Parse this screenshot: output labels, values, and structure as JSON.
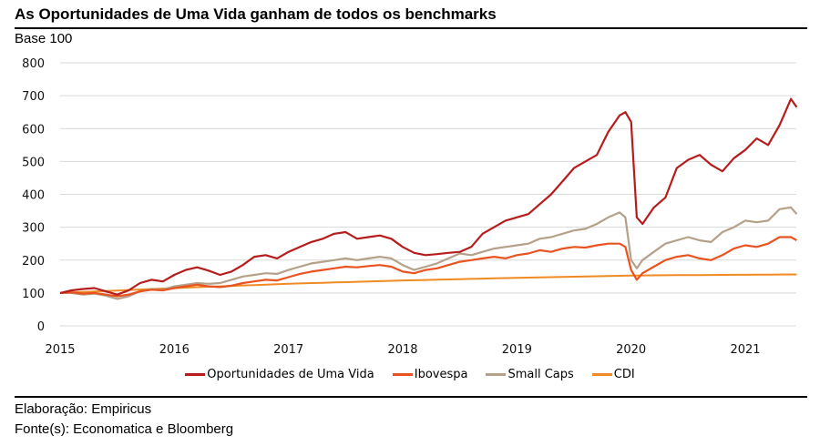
{
  "header": {
    "title": "As Oportunidades de Uma Vida ganham de todos os benchmarks",
    "subtitle": "Base 100"
  },
  "footer": {
    "line1": "Elaboração: Empiricus",
    "line2": "Fonte(s): Economatica e Bloomberg"
  },
  "chart_data": {
    "type": "line",
    "title": "As Oportunidades de Uma Vida ganham de todos os benchmarks",
    "ylabel": "Base 100",
    "xlabel": "",
    "ylim": [
      0,
      800
    ],
    "xlim": [
      2015.0,
      2021.45
    ],
    "grid": true,
    "legend_position": "bottom",
    "y_ticks": [
      "0",
      "100",
      "200",
      "300",
      "400",
      "500",
      "600",
      "700",
      "800"
    ],
    "x_ticks": [
      "2015",
      "2016",
      "2017",
      "2018",
      "2019",
      "2020",
      "2021"
    ],
    "x": [
      2015.0,
      2015.1,
      2015.2,
      2015.3,
      2015.4,
      2015.5,
      2015.6,
      2015.7,
      2015.8,
      2015.9,
      2016.0,
      2016.1,
      2016.2,
      2016.3,
      2016.4,
      2016.5,
      2016.6,
      2016.7,
      2016.8,
      2016.9,
      2017.0,
      2017.1,
      2017.2,
      2017.3,
      2017.4,
      2017.5,
      2017.6,
      2017.7,
      2017.8,
      2017.9,
      2018.0,
      2018.1,
      2018.2,
      2018.3,
      2018.4,
      2018.5,
      2018.6,
      2018.7,
      2018.8,
      2018.9,
      2019.0,
      2019.1,
      2019.2,
      2019.3,
      2019.4,
      2019.5,
      2019.6,
      2019.7,
      2019.8,
      2019.9,
      2019.95,
      2020.0,
      2020.05,
      2020.1,
      2020.2,
      2020.3,
      2020.4,
      2020.5,
      2020.6,
      2020.7,
      2020.8,
      2020.9,
      2021.0,
      2021.1,
      2021.2,
      2021.3,
      2021.4,
      2021.45
    ],
    "series": [
      {
        "name": "Oportunidades de Uma Vida",
        "color": "#B71C1C",
        "values": [
          100,
          108,
          112,
          115,
          105,
          95,
          108,
          130,
          140,
          135,
          155,
          170,
          178,
          168,
          155,
          165,
          185,
          210,
          215,
          205,
          225,
          240,
          255,
          265,
          280,
          285,
          265,
          270,
          275,
          265,
          240,
          222,
          215,
          218,
          222,
          225,
          240,
          280,
          300,
          320,
          330,
          340,
          370,
          400,
          440,
          480,
          500,
          520,
          590,
          640,
          650,
          620,
          330,
          310,
          360,
          390,
          480,
          505,
          520,
          490,
          470,
          510,
          535,
          570,
          550,
          610,
          690,
          665
        ]
      },
      {
        "name": "Ibovespa",
        "color": "#E8531F",
        "values": [
          100,
          102,
          98,
          100,
          95,
          90,
          95,
          105,
          110,
          108,
          115,
          120,
          125,
          120,
          118,
          122,
          130,
          135,
          140,
          138,
          148,
          158,
          165,
          170,
          175,
          180,
          178,
          182,
          185,
          180,
          165,
          160,
          170,
          175,
          185,
          195,
          200,
          205,
          210,
          205,
          215,
          220,
          230,
          225,
          235,
          240,
          238,
          245,
          250,
          250,
          240,
          170,
          140,
          160,
          180,
          200,
          210,
          215,
          205,
          200,
          215,
          235,
          245,
          240,
          250,
          270,
          270,
          260
        ]
      },
      {
        "name": "Small Caps",
        "color": "#B5A089",
        "values": [
          100,
          100,
          95,
          98,
          92,
          82,
          90,
          105,
          112,
          110,
          120,
          125,
          130,
          128,
          130,
          140,
          150,
          155,
          160,
          158,
          170,
          180,
          190,
          195,
          200,
          205,
          200,
          205,
          210,
          205,
          185,
          170,
          180,
          190,
          205,
          220,
          215,
          225,
          235,
          240,
          245,
          250,
          265,
          270,
          280,
          290,
          295,
          310,
          330,
          345,
          330,
          200,
          175,
          200,
          225,
          250,
          260,
          270,
          260,
          255,
          285,
          300,
          320,
          315,
          320,
          355,
          360,
          340
        ]
      },
      {
        "name": "CDI",
        "color": "#F08A24",
        "values": [
          100,
          101.5,
          103,
          104.5,
          106,
          107.5,
          109,
          110.5,
          112,
          113.5,
          115,
          116.3,
          117.6,
          118.9,
          120.2,
          121.5,
          122.8,
          124.1,
          125.4,
          126.7,
          128,
          129,
          130,
          131,
          132,
          133,
          134,
          135,
          136,
          137,
          138,
          138.8,
          139.6,
          140.4,
          141.2,
          142,
          142.8,
          143.6,
          144.4,
          145.2,
          146,
          146.7,
          147.4,
          148.1,
          148.8,
          149.5,
          150.2,
          150.9,
          151.6,
          152.3,
          152.6,
          153,
          153.2,
          153.4,
          153.7,
          154,
          154.2,
          154.4,
          154.6,
          154.8,
          155,
          155.2,
          155.4,
          155.6,
          155.8,
          156,
          156.3,
          156.5
        ]
      }
    ]
  }
}
